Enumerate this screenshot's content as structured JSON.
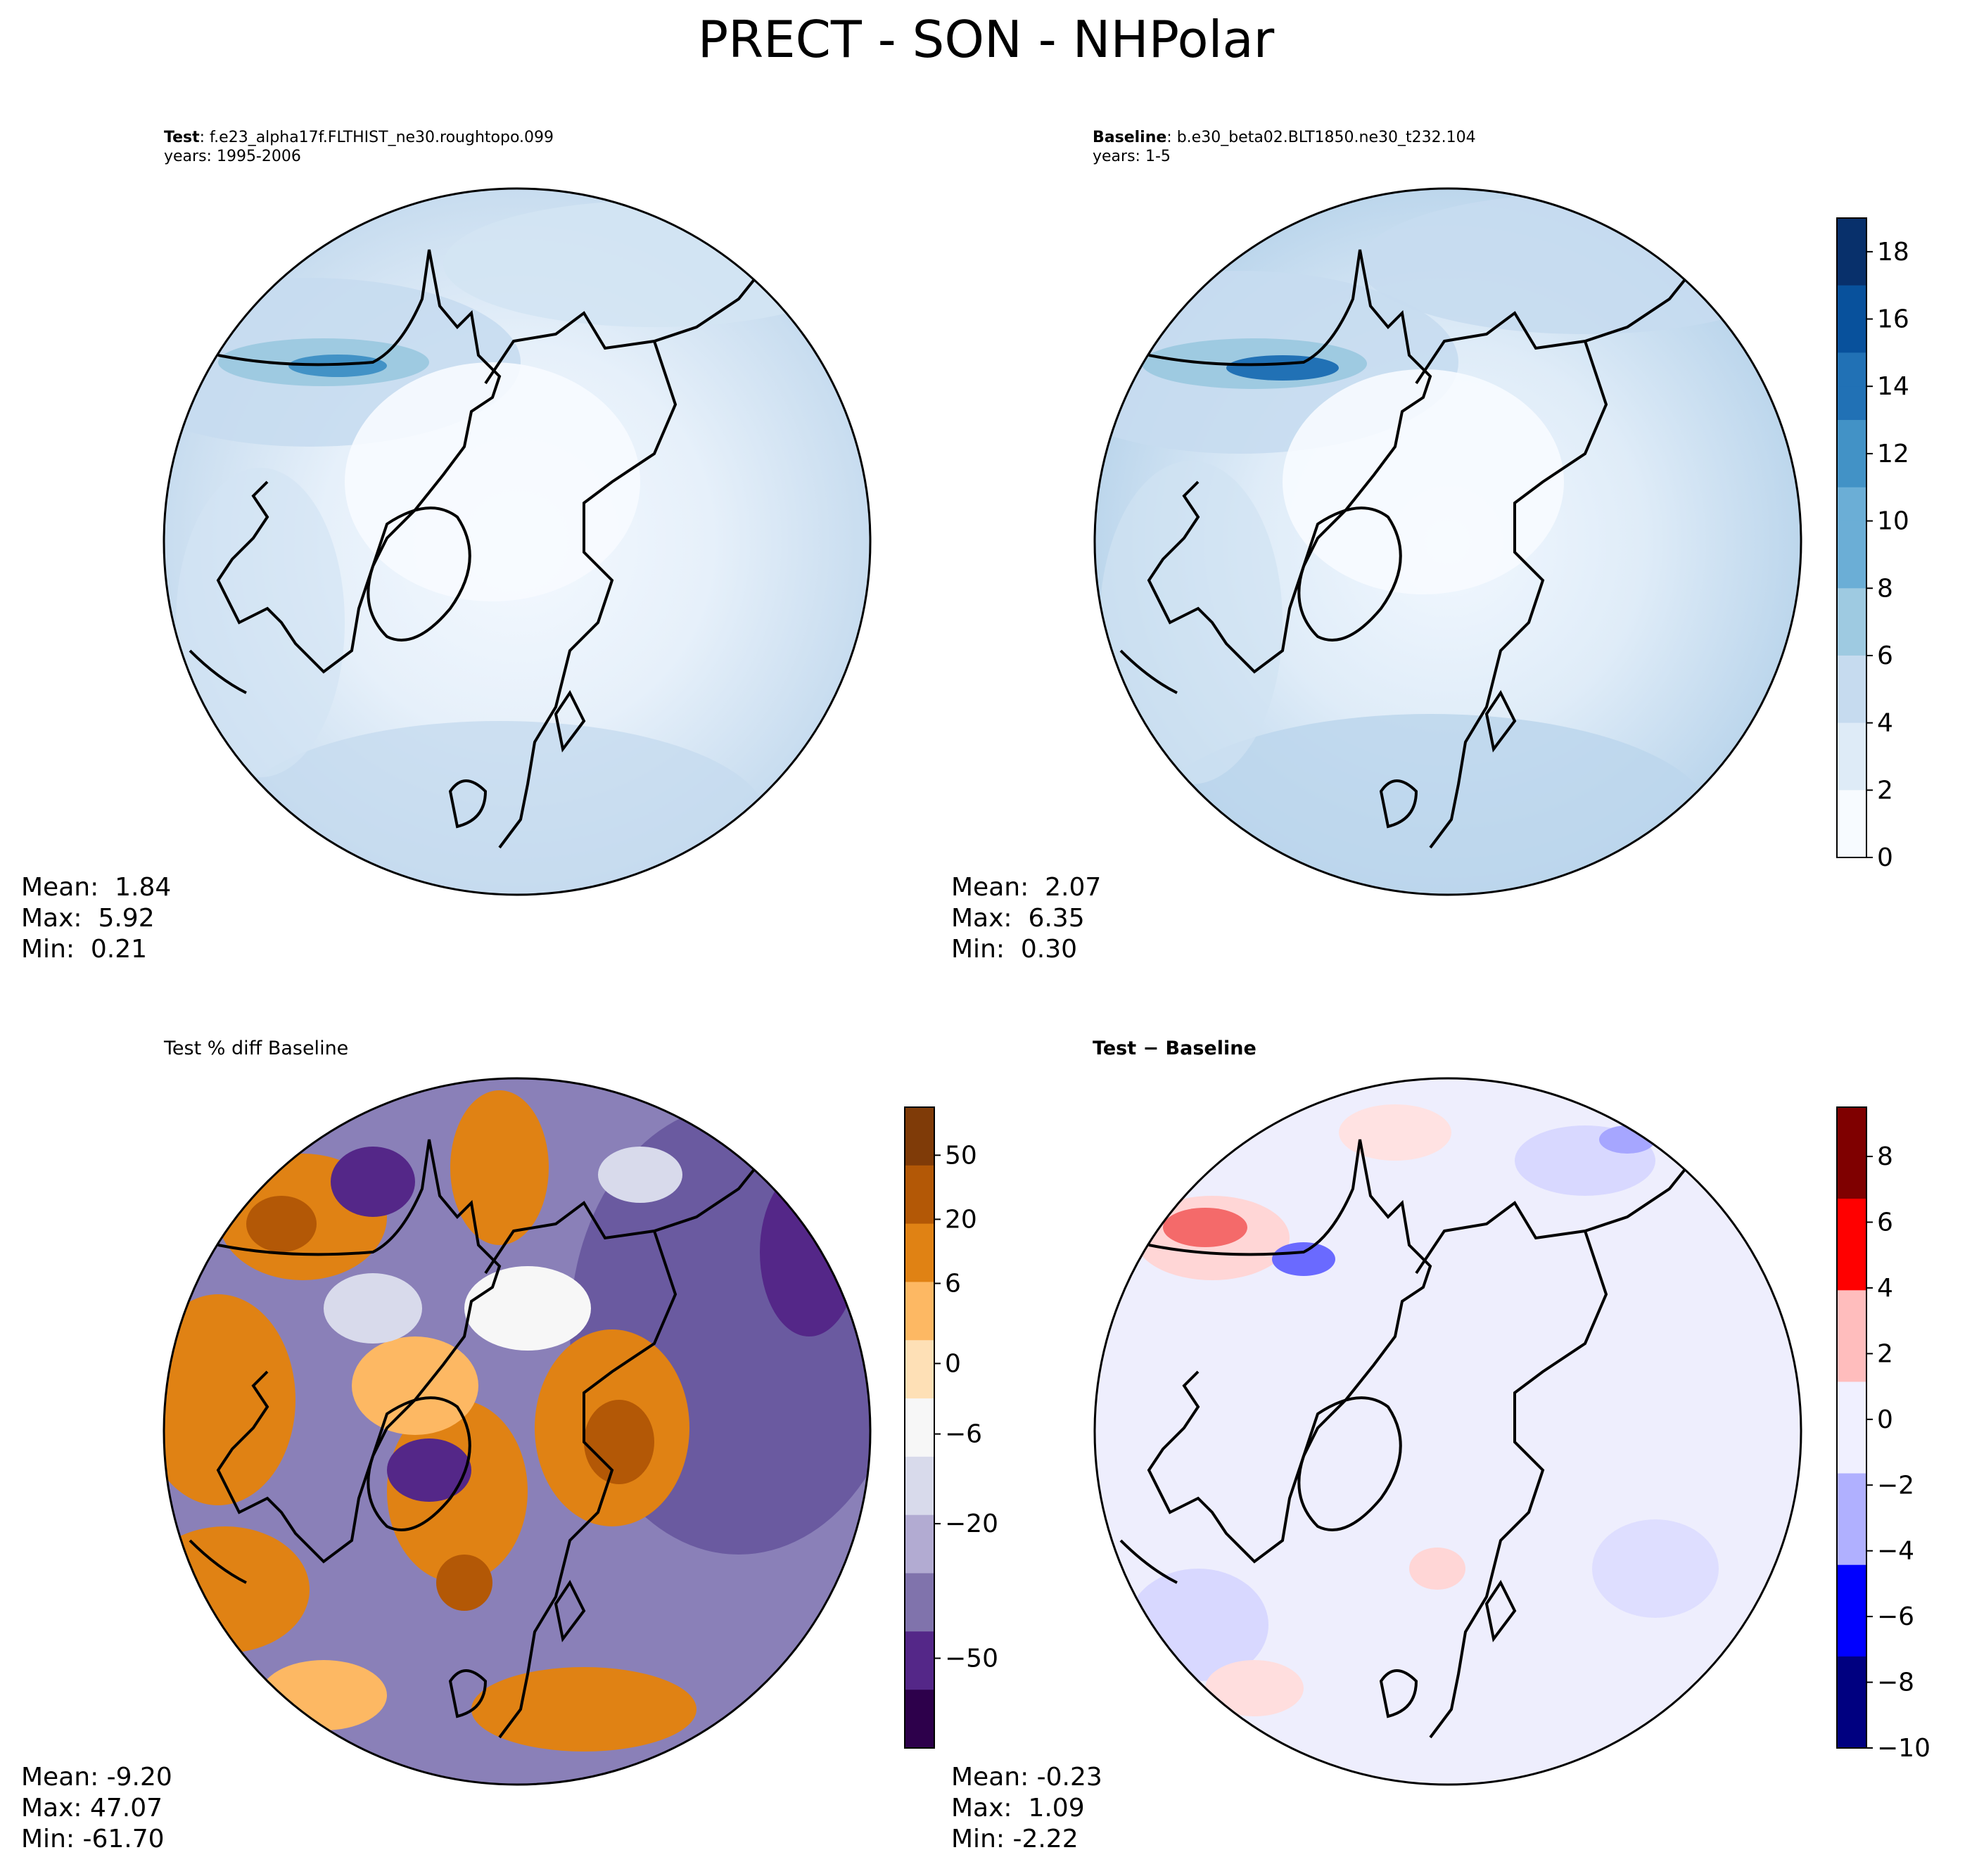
{
  "figure_title": "PRECT - SON - NHPolar",
  "panels": {
    "test": {
      "label": "Test",
      "case": "f.e23_alpha17f.FLTHIST_ne30.roughtopo.099",
      "years": "years: 1995-2006",
      "mean": "Mean:  1.84",
      "max": "Max:  5.92",
      "min": "Min:  0.21"
    },
    "baseline": {
      "label": "Baseline",
      "case": "b.e30_beta02.BLT1850.ne30_t232.104",
      "years": "years: 1-5",
      "mean": "Mean:  2.07",
      "max": "Max:  6.35",
      "min": "Min:  0.30"
    },
    "pctdiff": {
      "title": "Test % diff Baseline",
      "mean": "Mean: -9.20",
      "max": "Max: 47.07",
      "min": "Min: -61.70"
    },
    "diff": {
      "title": "Test − Baseline",
      "mean": "Mean: -0.23",
      "max": "Max:  1.09",
      "min": "Min: -2.22"
    }
  },
  "colorbars": {
    "precip": {
      "ticks": [
        "0",
        "2",
        "4",
        "6",
        "8",
        "10",
        "12",
        "14",
        "16",
        "18"
      ],
      "values": [
        0,
        2,
        4,
        6,
        8,
        10,
        12,
        14,
        16,
        18
      ],
      "range": [
        0,
        19
      ],
      "colors": [
        "#f7fbff",
        "#deebf7",
        "#c6dbef",
        "#9ecae1",
        "#6baed6",
        "#4292c6",
        "#2171b5",
        "#08519c",
        "#08306b"
      ]
    },
    "pctdiff": {
      "ticks": [
        "50",
        "20",
        "6",
        "0",
        "−6",
        "−20",
        "−50"
      ],
      "colors_top_to_bottom": [
        "#7f3b08",
        "#b35806",
        "#e08214",
        "#fdb863",
        "#fee0b6",
        "#f7f7f7",
        "#d8daeb",
        "#b2abd2",
        "#8073ac",
        "#542788",
        "#2d004b"
      ]
    },
    "diff": {
      "ticks": [
        "8",
        "6",
        "4",
        "2",
        "0",
        "−2",
        "−4",
        "−6",
        "−8",
        "−10"
      ],
      "values": [
        8,
        6,
        4,
        2,
        0,
        -2,
        -4,
        -6,
        -8,
        -10
      ],
      "range": [
        -10,
        9.5
      ],
      "colors_top_to_bottom": [
        "#7f0000",
        "#ff0000",
        "#ffbdbd",
        "#f0f0ff",
        "#b0b0ff",
        "#0000ff",
        "#000080"
      ]
    }
  }
}
